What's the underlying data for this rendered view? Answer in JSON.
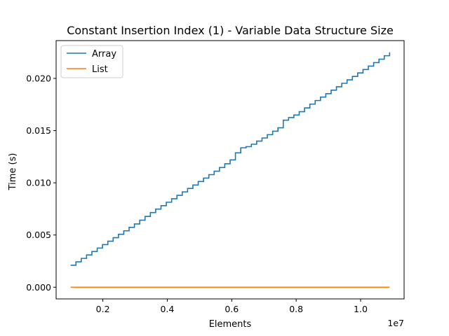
{
  "chart_data": {
    "type": "line",
    "title": "Constant Insertion Index (1) - Variable Data Structure Size",
    "xlabel": "Elements",
    "ylabel": "Time (s)",
    "x_offset_label": "1e7",
    "xlim": [
      550000,
      11350000
    ],
    "ylim": [
      -0.00112,
      0.02362
    ],
    "x_ticks": [
      2000000,
      4000000,
      6000000,
      8000000,
      10000000
    ],
    "x_tick_labels": [
      "0.2",
      "0.4",
      "0.6",
      "0.8",
      "1.0"
    ],
    "y_ticks": [
      0.0,
      0.005,
      0.01,
      0.015,
      0.02
    ],
    "y_tick_labels": [
      "0.000",
      "0.005",
      "0.010",
      "0.015",
      "0.020"
    ],
    "grid": false,
    "legend_position": "top-left",
    "series": [
      {
        "name": "Array",
        "color": "#1f77b4",
        "step": true,
        "x": [
          1000000,
          1500000,
          2000000,
          2500000,
          3000000,
          3500000,
          4000000,
          4500000,
          5000000,
          5500000,
          6000000,
          6200000,
          6500000,
          7000000,
          7500000,
          7600000,
          8000000,
          8500000,
          9000000,
          9500000,
          10000000,
          10500000,
          10900000
        ],
        "values": [
          0.0021,
          0.0031,
          0.0041,
          0.0051,
          0.0061,
          0.0072,
          0.0082,
          0.0092,
          0.0102,
          0.0112,
          0.0123,
          0.0133,
          0.0135,
          0.0144,
          0.0154,
          0.016,
          0.0166,
          0.0177,
          0.0187,
          0.0197,
          0.0207,
          0.0217,
          0.0225
        ]
      },
      {
        "name": "List",
        "color": "#ff7f0e",
        "step": false,
        "x": [
          1000000,
          10900000
        ],
        "values": [
          0.0,
          0.0
        ]
      }
    ]
  }
}
